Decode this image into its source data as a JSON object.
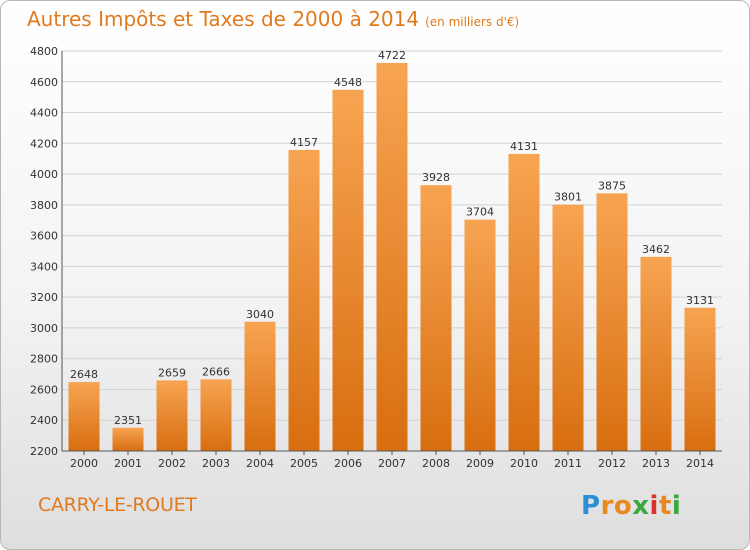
{
  "title": "Autres Impôts et Taxes de 2000 à 2014",
  "unit_label": "(en milliers d'€)",
  "commune": "CARRY-LE-ROUET",
  "logo": {
    "letters": [
      "P",
      "r",
      "o",
      "x",
      "i",
      "t",
      "i"
    ],
    "colors": [
      "#2a8fd6",
      "#e8891f",
      "#e8891f",
      "#3aa83a",
      "#d9342b",
      "#e8891f",
      "#3aa83a"
    ]
  },
  "colors": {
    "bar_top": "#f7a452",
    "bar_bottom": "#d86e10",
    "accent": "#e07a1f"
  },
  "chart_data": {
    "type": "bar",
    "title": "Autres Impôts et Taxes de 2000 à 2014",
    "subtitle": "(en milliers d'€)",
    "categories": [
      "2000",
      "2001",
      "2002",
      "2003",
      "2004",
      "2005",
      "2006",
      "2007",
      "2008",
      "2009",
      "2010",
      "2011",
      "2012",
      "2013",
      "2014"
    ],
    "values": [
      2648,
      2351,
      2659,
      2666,
      3040,
      4157,
      4548,
      4722,
      3928,
      3704,
      4131,
      3801,
      3875,
      3462,
      3131
    ],
    "ylim": [
      2200,
      4800
    ],
    "yticks": [
      2200,
      2400,
      2600,
      2800,
      3000,
      3200,
      3400,
      3600,
      3800,
      4000,
      4200,
      4400,
      4600,
      4800
    ],
    "grid": true,
    "xlabel": "",
    "ylabel": ""
  }
}
